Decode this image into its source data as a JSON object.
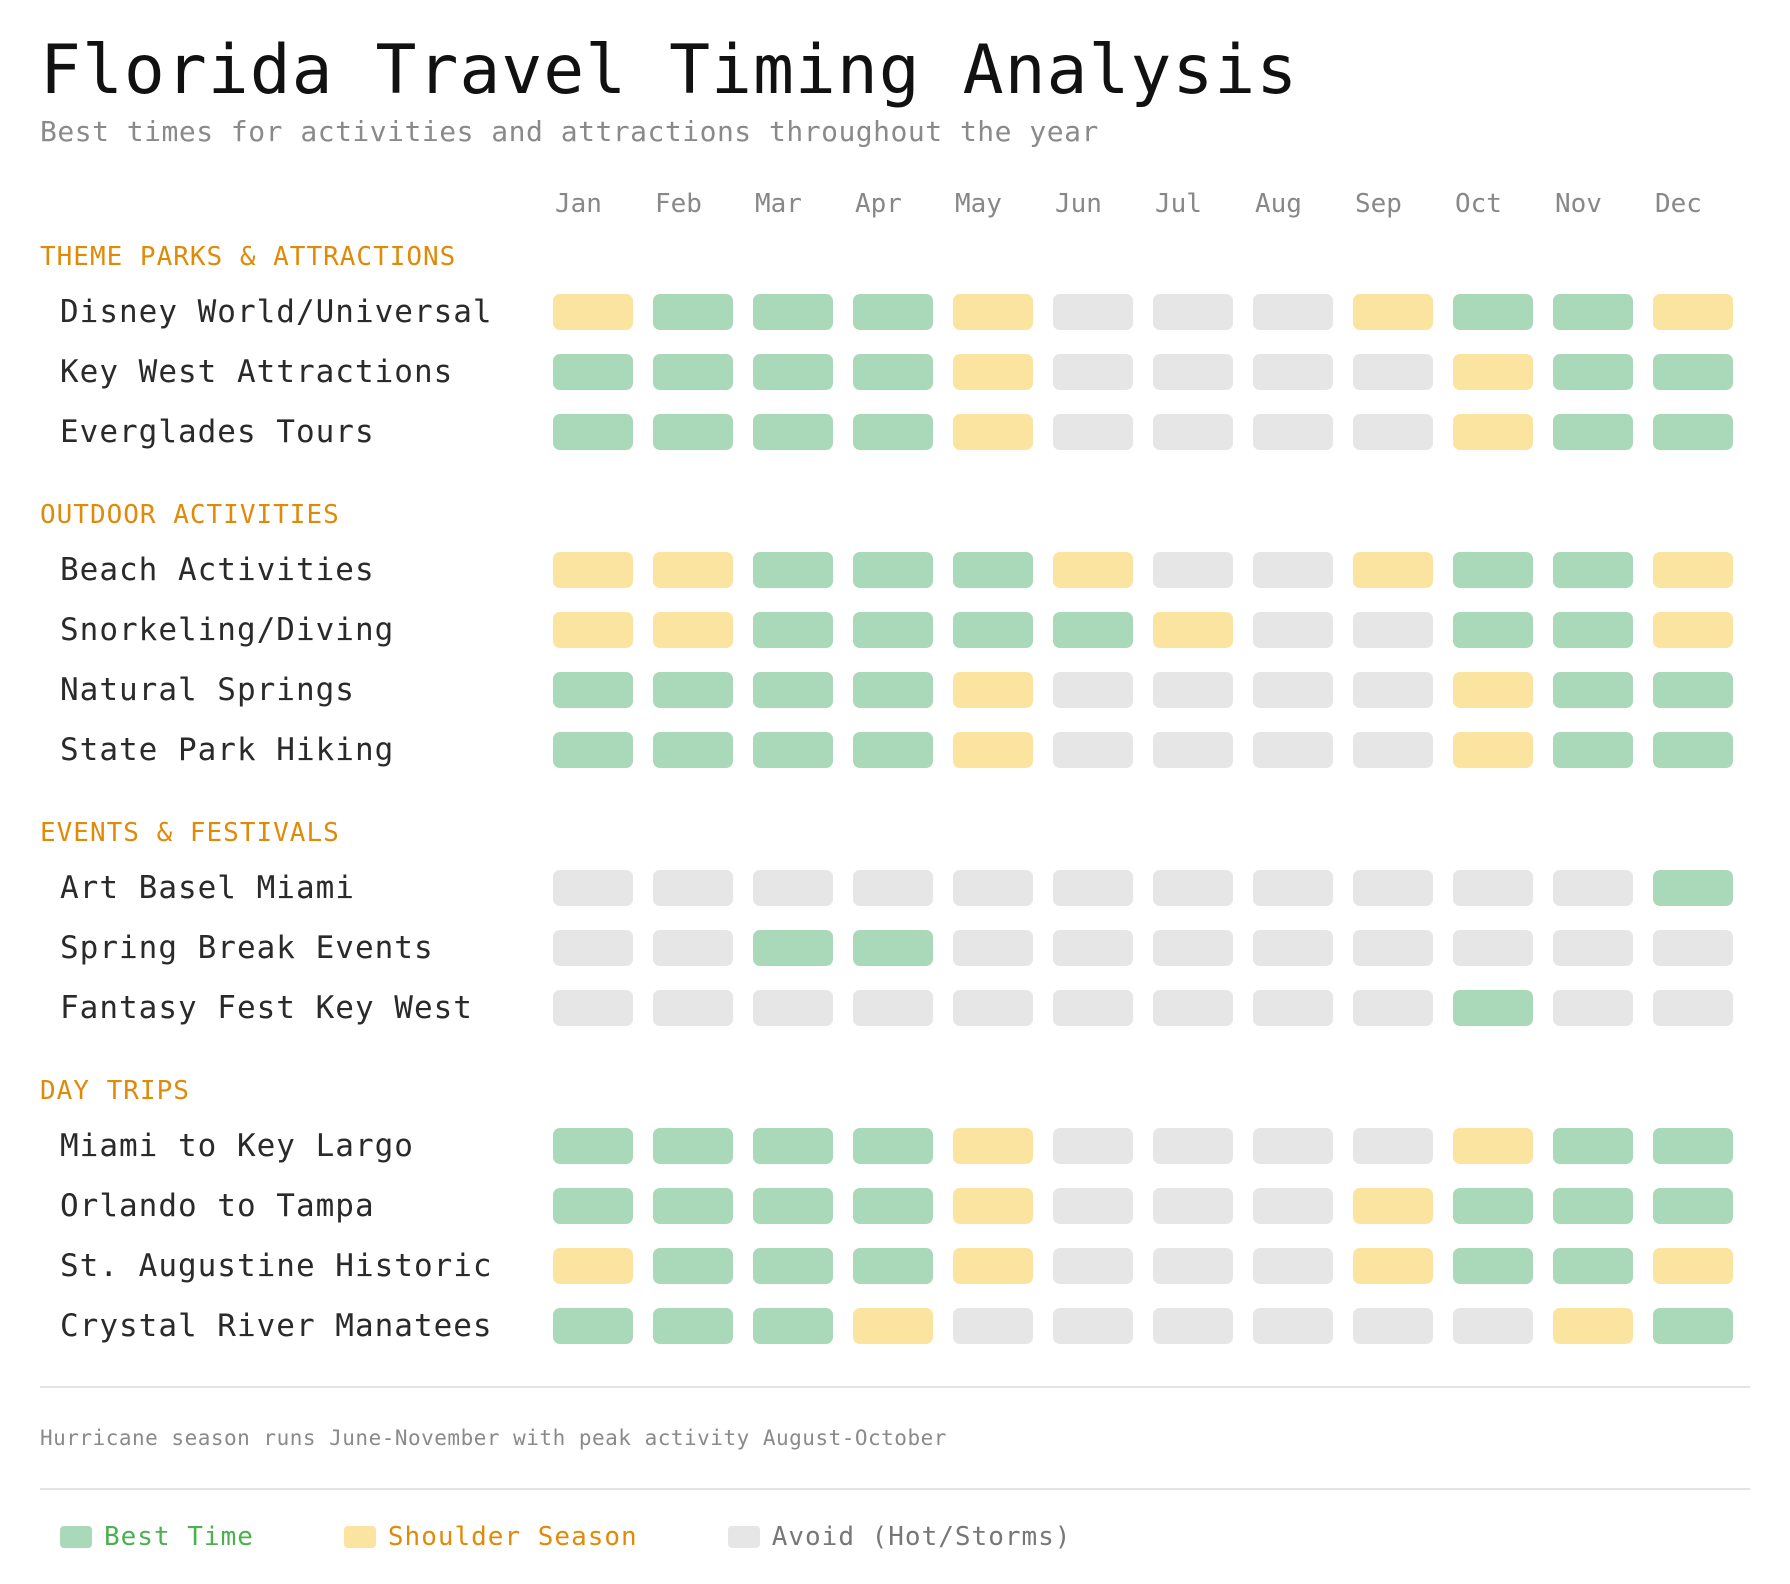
{
  "title": "Florida Travel Timing Analysis",
  "subtitle": "Best times for activities and attractions throughout the year",
  "colors": {
    "best": "#a9d9b8",
    "shoulder": "#fbe49f",
    "avoid": "#e6e6e6",
    "section": "#e08a0a",
    "best_text": "#4caf50",
    "shoulder_text": "#e08a0a",
    "avoid_text": "#777777"
  },
  "chart_data": {
    "type": "heatmap",
    "months": [
      "Jan",
      "Feb",
      "Mar",
      "Apr",
      "May",
      "Jun",
      "Jul",
      "Aug",
      "Sep",
      "Oct",
      "Nov",
      "Dec"
    ],
    "levels": {
      "best": "Best Time",
      "shoulder": "Shoulder Season",
      "avoid": "Avoid (Hot/Storms)"
    },
    "sections": [
      {
        "title": "THEME PARKS & ATTRACTIONS",
        "rows": [
          {
            "label": "Disney World/Universal",
            "values": [
              "shoulder",
              "best",
              "best",
              "best",
              "shoulder",
              "avoid",
              "avoid",
              "avoid",
              "shoulder",
              "best",
              "best",
              "shoulder"
            ]
          },
          {
            "label": "Key West Attractions",
            "values": [
              "best",
              "best",
              "best",
              "best",
              "shoulder",
              "avoid",
              "avoid",
              "avoid",
              "avoid",
              "shoulder",
              "best",
              "best"
            ]
          },
          {
            "label": "Everglades Tours",
            "values": [
              "best",
              "best",
              "best",
              "best",
              "shoulder",
              "avoid",
              "avoid",
              "avoid",
              "avoid",
              "shoulder",
              "best",
              "best"
            ]
          }
        ]
      },
      {
        "title": "OUTDOOR ACTIVITIES",
        "rows": [
          {
            "label": "Beach Activities",
            "values": [
              "shoulder",
              "shoulder",
              "best",
              "best",
              "best",
              "shoulder",
              "avoid",
              "avoid",
              "shoulder",
              "best",
              "best",
              "shoulder"
            ]
          },
          {
            "label": "Snorkeling/Diving",
            "values": [
              "shoulder",
              "shoulder",
              "best",
              "best",
              "best",
              "best",
              "shoulder",
              "avoid",
              "avoid",
              "best",
              "best",
              "shoulder"
            ]
          },
          {
            "label": "Natural Springs",
            "values": [
              "best",
              "best",
              "best",
              "best",
              "shoulder",
              "avoid",
              "avoid",
              "avoid",
              "avoid",
              "shoulder",
              "best",
              "best"
            ]
          },
          {
            "label": "State Park Hiking",
            "values": [
              "best",
              "best",
              "best",
              "best",
              "shoulder",
              "avoid",
              "avoid",
              "avoid",
              "avoid",
              "shoulder",
              "best",
              "best"
            ]
          }
        ]
      },
      {
        "title": "EVENTS & FESTIVALS",
        "rows": [
          {
            "label": "Art Basel Miami",
            "values": [
              "avoid",
              "avoid",
              "avoid",
              "avoid",
              "avoid",
              "avoid",
              "avoid",
              "avoid",
              "avoid",
              "avoid",
              "avoid",
              "best"
            ]
          },
          {
            "label": "Spring Break Events",
            "values": [
              "avoid",
              "avoid",
              "best",
              "best",
              "avoid",
              "avoid",
              "avoid",
              "avoid",
              "avoid",
              "avoid",
              "avoid",
              "avoid"
            ]
          },
          {
            "label": "Fantasy Fest Key West",
            "values": [
              "avoid",
              "avoid",
              "avoid",
              "avoid",
              "avoid",
              "avoid",
              "avoid",
              "avoid",
              "avoid",
              "best",
              "avoid",
              "avoid"
            ]
          }
        ]
      },
      {
        "title": "DAY TRIPS",
        "rows": [
          {
            "label": "Miami to Key Largo",
            "values": [
              "best",
              "best",
              "best",
              "best",
              "shoulder",
              "avoid",
              "avoid",
              "avoid",
              "avoid",
              "shoulder",
              "best",
              "best"
            ]
          },
          {
            "label": "Orlando to Tampa",
            "values": [
              "best",
              "best",
              "best",
              "best",
              "shoulder",
              "avoid",
              "avoid",
              "avoid",
              "shoulder",
              "best",
              "best",
              "best"
            ]
          },
          {
            "label": "St. Augustine Historic",
            "values": [
              "shoulder",
              "best",
              "best",
              "best",
              "shoulder",
              "avoid",
              "avoid",
              "avoid",
              "shoulder",
              "best",
              "best",
              "shoulder"
            ]
          },
          {
            "label": "Crystal River Manatees",
            "values": [
              "best",
              "best",
              "best",
              "shoulder",
              "avoid",
              "avoid",
              "avoid",
              "avoid",
              "avoid",
              "avoid",
              "shoulder",
              "best"
            ]
          }
        ]
      }
    ]
  },
  "note": "Hurricane season runs June-November with peak activity August-October",
  "legend": [
    {
      "key": "best",
      "label": "Best Time"
    },
    {
      "key": "shoulder",
      "label": "Shoulder Season"
    },
    {
      "key": "avoid",
      "label": "Avoid (Hot/Storms)"
    }
  ]
}
